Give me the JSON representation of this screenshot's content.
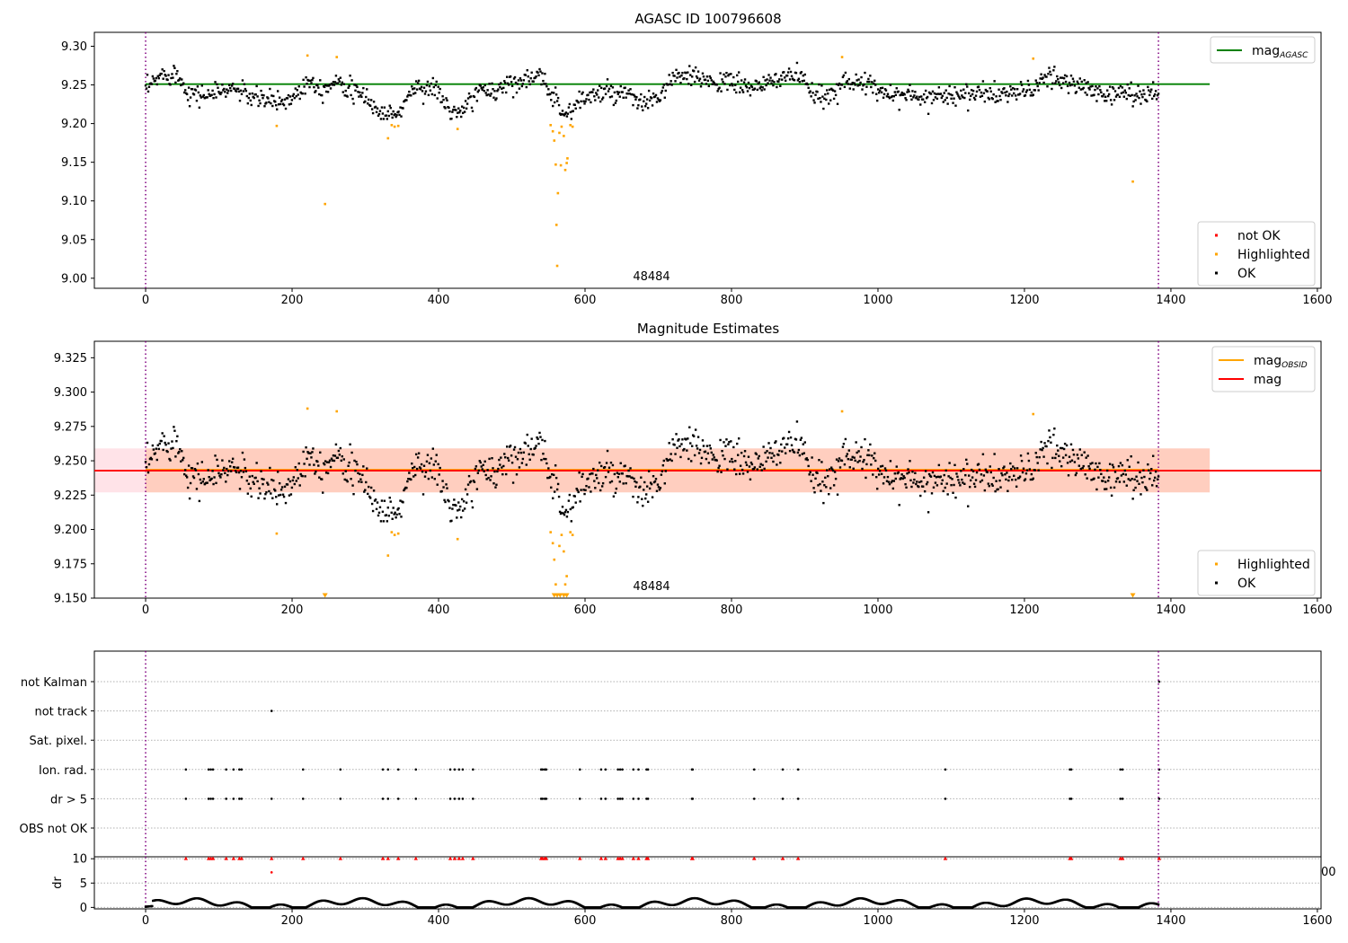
{
  "chart_data": [
    {
      "type": "scatter",
      "title": "AGASC ID 100796608",
      "xlim": [
        -70,
        1605
      ],
      "ylim": [
        8.987,
        9.318
      ],
      "xticks": [
        0,
        200,
        400,
        600,
        800,
        1000,
        1200,
        1400,
        1600
      ],
      "yticks": [
        9.0,
        9.05,
        9.1,
        9.15,
        9.2,
        9.25,
        9.3
      ],
      "ytick_labels": [
        "9.00",
        "9.05",
        "9.10",
        "9.15",
        "9.20",
        "9.25",
        "9.30"
      ],
      "grid": false,
      "annotation": {
        "x": 690,
        "y": 9.0,
        "text": "48484"
      },
      "obsid_bounds": [
        0,
        1383
      ],
      "hlines": [
        {
          "name": "mag_AGASC",
          "label": "mag",
          "sub": "AGASC",
          "y": 9.251,
          "xmin": 0,
          "xmax": 1453,
          "color": "#008000"
        }
      ],
      "legend_top": {
        "placement": "top-right",
        "entries": [
          {
            "label": "mag",
            "sub": "AGASC",
            "color": "#008000"
          }
        ]
      },
      "legend_bottom": {
        "placement": "bottom-right",
        "entries": [
          {
            "label": "not OK",
            "color": "#ff0000"
          },
          {
            "label": "Highlighted",
            "color": "#ffa500"
          },
          {
            "label": "OK",
            "color": "#000000"
          }
        ]
      },
      "series": [
        {
          "name": "Highlighted",
          "color": "#ffa500",
          "points": [
            [
              179,
              9.197
            ],
            [
              221,
              9.288
            ],
            [
              245,
              9.096
            ],
            [
              261,
              9.286
            ],
            [
              331,
              9.181
            ],
            [
              336,
              9.198
            ],
            [
              340,
              9.196
            ],
            [
              345,
              9.197
            ],
            [
              426,
              9.193
            ],
            [
              553,
              9.198
            ],
            [
              556,
              9.19
            ],
            [
              558,
              9.178
            ],
            [
              560,
              9.147
            ],
            [
              561,
              9.069
            ],
            [
              562,
              9.016
            ],
            [
              563,
              9.11
            ],
            [
              565,
              9.188
            ],
            [
              567,
              9.146
            ],
            [
              568,
              9.196
            ],
            [
              571,
              9.184
            ],
            [
              573,
              9.14
            ],
            [
              575,
              9.149
            ],
            [
              576,
              9.155
            ],
            [
              580,
              9.198
            ],
            [
              583,
              9.196
            ],
            [
              951,
              9.286
            ],
            [
              1212,
              9.284
            ],
            [
              1348,
              9.125
            ]
          ]
        },
        {
          "name": "OK",
          "color": "#000000",
          "baseline": 9.244,
          "anchors": [
            [
              0,
              9.242
            ],
            [
              20,
              9.262
            ],
            [
              40,
              9.266
            ],
            [
              60,
              9.24
            ],
            [
              80,
              9.236
            ],
            [
              120,
              9.246
            ],
            [
              150,
              9.232
            ],
            [
              190,
              9.228
            ],
            [
              205,
              9.238
            ],
            [
              225,
              9.258
            ],
            [
              240,
              9.244
            ],
            [
              265,
              9.258
            ],
            [
              285,
              9.238
            ],
            [
              300,
              9.236
            ],
            [
              320,
              9.212
            ],
            [
              345,
              9.212
            ],
            [
              365,
              9.246
            ],
            [
              395,
              9.246
            ],
            [
              415,
              9.218
            ],
            [
              430,
              9.21
            ],
            [
              450,
              9.24
            ],
            [
              480,
              9.244
            ],
            [
              500,
              9.254
            ],
            [
              520,
              9.258
            ],
            [
              540,
              9.258
            ],
            [
              555,
              9.24
            ],
            [
              575,
              9.21
            ],
            [
              595,
              9.232
            ],
            [
              625,
              9.24
            ],
            [
              655,
              9.236
            ],
            [
              680,
              9.226
            ],
            [
              700,
              9.232
            ],
            [
              720,
              9.26
            ],
            [
              760,
              9.258
            ],
            [
              800,
              9.252
            ],
            [
              840,
              9.246
            ],
            [
              870,
              9.262
            ],
            [
              895,
              9.262
            ],
            [
              905,
              9.24
            ],
            [
              930,
              9.232
            ],
            [
              955,
              9.258
            ],
            [
              1000,
              9.244
            ],
            [
              1050,
              9.234
            ],
            [
              1100,
              9.238
            ],
            [
              1150,
              9.238
            ],
            [
              1200,
              9.24
            ],
            [
              1230,
              9.258
            ],
            [
              1260,
              9.254
            ],
            [
              1300,
              9.24
            ],
            [
              1330,
              9.238
            ],
            [
              1383,
              9.24
            ]
          ],
          "spread": 0.012,
          "count": 1150
        }
      ]
    },
    {
      "type": "scatter",
      "title": "Magnitude Estimates",
      "xlim": [
        -70,
        1605
      ],
      "ylim": [
        9.15,
        9.337
      ],
      "xticks": [
        0,
        200,
        400,
        600,
        800,
        1000,
        1200,
        1400,
        1600
      ],
      "yticks": [
        9.15,
        9.175,
        9.2,
        9.225,
        9.25,
        9.275,
        9.3,
        9.325
      ],
      "ytick_labels": [
        "9.150",
        "9.175",
        "9.200",
        "9.225",
        "9.250",
        "9.275",
        "9.300",
        "9.325"
      ],
      "grid": false,
      "annotation": {
        "x": 690,
        "y": 9.156,
        "text": "48484"
      },
      "obsid_bounds": [
        0,
        1383
      ],
      "hlines": [
        {
          "name": "mag_OBSID",
          "label": "mag",
          "sub": "OBSID",
          "y": 9.2435,
          "xmin": 0,
          "xmax": 1383,
          "color": "#ffa500"
        },
        {
          "name": "mag",
          "label": "mag",
          "y": 9.2428,
          "xmin": -70,
          "xmax": 1605,
          "color": "#ff0000"
        }
      ],
      "bands": [
        {
          "name": "mag-band",
          "ymin": 9.227,
          "ymax": 9.259,
          "xmin": -70,
          "xmax": 1453,
          "color": "#ffc0cb",
          "opacity": 0.45
        },
        {
          "name": "mag-obsid-band",
          "ymin": 9.227,
          "ymax": 9.259,
          "xmin": 0,
          "xmax": 1453,
          "color": "#ffa060",
          "opacity": 0.3
        }
      ],
      "legend_top": {
        "placement": "top-right",
        "entries": [
          {
            "label": "mag",
            "sub": "OBSID",
            "color": "#ffa500"
          },
          {
            "label": "mag",
            "color": "#ff0000"
          }
        ]
      },
      "legend_bottom": {
        "placement": "bottom-right",
        "entries": [
          {
            "label": "Highlighted",
            "color": "#ffa500"
          },
          {
            "label": "OK",
            "color": "#000000"
          }
        ]
      },
      "clipped_markers": [
        [
          245,
          9.151
        ],
        [
          558,
          9.151
        ],
        [
          562,
          9.151
        ],
        [
          566,
          9.151
        ],
        [
          571,
          9.151
        ],
        [
          575,
          9.151
        ],
        [
          1348,
          9.151
        ]
      ],
      "series": [
        {
          "name": "Highlighted",
          "color": "#ffa500",
          "points": [
            [
              179,
              9.197
            ],
            [
              221,
              9.288
            ],
            [
              261,
              9.286
            ],
            [
              331,
              9.181
            ],
            [
              336,
              9.198
            ],
            [
              340,
              9.196
            ],
            [
              345,
              9.197
            ],
            [
              426,
              9.193
            ],
            [
              553,
              9.198
            ],
            [
              556,
              9.19
            ],
            [
              558,
              9.178
            ],
            [
              560,
              9.16
            ],
            [
              565,
              9.188
            ],
            [
              568,
              9.196
            ],
            [
              571,
              9.184
            ],
            [
              573,
              9.16
            ],
            [
              575,
              9.166
            ],
            [
              580,
              9.198
            ],
            [
              583,
              9.196
            ],
            [
              951,
              9.286
            ],
            [
              1212,
              9.284
            ]
          ]
        },
        {
          "name": "OK",
          "color": "#000000",
          "same_as_panel": 0
        }
      ]
    },
    {
      "type": "scatter",
      "title": "",
      "xlim": [
        -70,
        1605
      ],
      "categories": [
        "not Kalman",
        "not track",
        "Sat. pixel.",
        "Ion. rad.",
        "dr > 5",
        "OBS not OK"
      ],
      "grid": true,
      "obsid_bounds": [
        0,
        1383
      ],
      "flag_x": {
        "not Kalman": [
          1384
        ],
        "not track": [
          172
        ],
        "Sat. pixel.": [],
        "Ion. rad.": [
          55,
          86,
          89,
          92,
          110,
          120,
          128,
          131,
          215,
          266,
          324,
          331,
          345,
          369,
          416,
          422,
          428,
          433,
          447,
          540,
          542,
          545,
          547,
          593,
          622,
          628,
          645,
          648,
          651,
          666,
          673,
          684,
          686,
          746,
          747,
          831,
          870,
          891,
          1092,
          1262,
          1264,
          1331,
          1334,
          1384
        ],
        "dr > 5": [
          55,
          86,
          89,
          92,
          110,
          120,
          128,
          131,
          172,
          215,
          266,
          324,
          331,
          345,
          369,
          416,
          422,
          428,
          433,
          447,
          540,
          542,
          545,
          547,
          593,
          622,
          628,
          645,
          648,
          651,
          666,
          673,
          684,
          686,
          746,
          747,
          831,
          870,
          891,
          1092,
          1262,
          1264,
          1331,
          1334,
          1384
        ],
        "OBS not OK": []
      }
    },
    {
      "type": "scatter",
      "title": "",
      "ylabel": "dr",
      "xlim": [
        -70,
        1605
      ],
      "ylim": [
        -0.3,
        10.4
      ],
      "xticks": [
        0,
        200,
        400,
        600,
        800,
        1000,
        1200,
        1400,
        1600
      ],
      "yticks": [
        0,
        5,
        10
      ],
      "ytick_labels": [
        "0",
        "5",
        "10"
      ],
      "grid": true,
      "overflow_label": "00",
      "obsid_bounds": [
        0,
        1383
      ],
      "red_marker_x": [
        55,
        86,
        89,
        92,
        110,
        120,
        128,
        131,
        172,
        215,
        266,
        324,
        331,
        345,
        369,
        416,
        422,
        428,
        433,
        447,
        540,
        542,
        545,
        547,
        593,
        622,
        628,
        645,
        648,
        651,
        666,
        673,
        684,
        686,
        746,
        747,
        831,
        870,
        891,
        1092,
        1262,
        1264,
        1331,
        1334,
        1384
      ],
      "red_marker_y": 10,
      "extra_red": [
        [
          172,
          7.2
        ]
      ],
      "series": [
        {
          "name": "dr",
          "color": "#000000",
          "min": 0.0,
          "max": 1.9,
          "count": 1380
        }
      ]
    }
  ]
}
